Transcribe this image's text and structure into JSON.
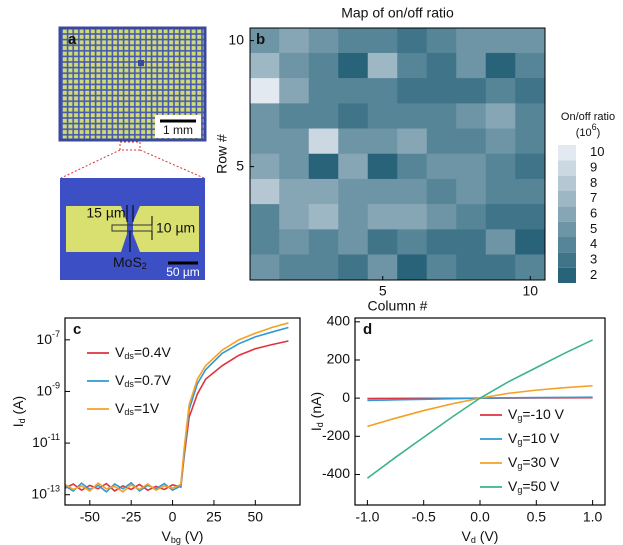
{
  "panel_a": {
    "label": "a",
    "top_scale_bar": "1 mm",
    "gap_label": "15 µm",
    "width_label": "10 µm",
    "material_label": "MoS2",
    "bottom_scale_bar": "50 µm"
  },
  "chart_data": [
    {
      "type": "heatmap",
      "label": "b",
      "title": "Map of on/off ratio",
      "x_label": "Column #",
      "y_label": "Row #",
      "x": [
        1,
        2,
        3,
        4,
        5,
        6,
        7,
        8,
        9,
        10
      ],
      "y": [
        10,
        9,
        8,
        7,
        6,
        5,
        4,
        3,
        2,
        1
      ],
      "values": [
        [
          5,
          6,
          5,
          4,
          4,
          3,
          4,
          5,
          5,
          5
        ],
        [
          7,
          5,
          4,
          2,
          7,
          4,
          3,
          5,
          2,
          4
        ],
        [
          10,
          6,
          4,
          4,
          4,
          3,
          3,
          3,
          4,
          3
        ],
        [
          5,
          4,
          4,
          3,
          4,
          4,
          4,
          5,
          6,
          4
        ],
        [
          5,
          5,
          9,
          5,
          5,
          6,
          4,
          4,
          5,
          4
        ],
        [
          6,
          5,
          2,
          6,
          2,
          4,
          5,
          5,
          4,
          3
        ],
        [
          8,
          6,
          6,
          5,
          5,
          5,
          4,
          5,
          4,
          4
        ],
        [
          4,
          6,
          7,
          5,
          6,
          6,
          5,
          4,
          3,
          3
        ],
        [
          4,
          5,
          4,
          5,
          3,
          4,
          3,
          3,
          5,
          2
        ],
        [
          5,
          4,
          4,
          3,
          5,
          2,
          4,
          3,
          3,
          4
        ]
      ],
      "xlim": [
        0.5,
        10.5
      ],
      "xticks": [
        5,
        10
      ],
      "ylim": [
        0.5,
        10.5
      ],
      "yticks": [
        5,
        10
      ],
      "colorbar": {
        "title": "On/off ratio",
        "unit": "(106)",
        "lim": [
          1.5,
          10.5
        ],
        "ticks": [
          2,
          3,
          4,
          5,
          6,
          7,
          8,
          9,
          10
        ],
        "colors": [
          "#1d5b73",
          "#eef1f7"
        ]
      }
    },
    {
      "type": "line",
      "label": "c",
      "x_label": "Vbg (V)",
      "y_label": "Id (A)",
      "log_y": true,
      "legend": "upper left",
      "x": [
        -65,
        -60,
        -55,
        -50,
        -45,
        -40,
        -35,
        -30,
        -25,
        -20,
        -15,
        -10,
        -5,
        0,
        5,
        7,
        10,
        15,
        20,
        30,
        40,
        50,
        60,
        70
      ],
      "series": [
        {
          "name": "Vds=0.4V",
          "color": "#e0333d",
          "values": [
            1.8e-13,
            2.6e-13,
            1.5e-13,
            2.3e-13,
            1.7e-13,
            2.7e-13,
            1.4e-13,
            2.2e-13,
            1.6e-13,
            2.5e-13,
            1.5e-13,
            2.1e-13,
            1.6e-13,
            2.4e-13,
            2e-13,
            3e-12,
            1e-10,
            8e-10,
            3e-09,
            1e-08,
            2.5e-08,
            4.5e-08,
            6.5e-08,
            9e-08
          ]
        },
        {
          "name": "Vds=0.7V",
          "color": "#2f9ad6",
          "values": [
            2.2e-13,
            1.4e-13,
            2.8e-13,
            1.6e-13,
            2.3e-13,
            1.3e-13,
            2.6e-13,
            1.7e-13,
            2.9e-13,
            1.4e-13,
            2.3e-13,
            1.7e-13,
            2.7e-13,
            1.5e-13,
            2.2e-13,
            4e-12,
            2e-10,
            2e-09,
            7e-09,
            3e-08,
            7e-08,
            1.3e-07,
            2e-07,
            3e-07
          ]
        },
        {
          "name": "Vds=1V",
          "color": "#f5a023",
          "values": [
            2.5e-13,
            1.6e-13,
            2.2e-13,
            1.4e-13,
            2.8e-13,
            1.7e-13,
            2.1e-13,
            1.3e-13,
            2.4e-13,
            1.6e-13,
            2.6e-13,
            1.5e-13,
            2.2e-13,
            1.8e-13,
            2.5e-13,
            6e-12,
            3e-10,
            3e-09,
            1e-08,
            4e-08,
            1e-07,
            1.8e-07,
            3e-07,
            4.5e-07
          ]
        }
      ],
      "xlim": [
        -65,
        77
      ],
      "xticks": [
        -50,
        -25,
        0,
        25,
        50
      ],
      "ylim": [
        4e-14,
        7e-07
      ],
      "yticks": [
        {
          "value": 1e-13,
          "label": "10-13"
        },
        {
          "value": 1e-11,
          "label": "10-11"
        },
        {
          "value": 1e-09,
          "label": "10-9"
        },
        {
          "value": 1e-07,
          "label": "10-7"
        }
      ]
    },
    {
      "type": "line",
      "label": "d",
      "x_label": "Vd (V)",
      "y_label": "Id (nA)",
      "log_y": false,
      "legend": "lower right",
      "x": [
        -1,
        -0.75,
        -0.5,
        -0.25,
        0,
        0.25,
        0.5,
        0.75,
        1
      ],
      "series": [
        {
          "name": "Vg=-10 V",
          "color": "#e0333d",
          "values": [
            -2,
            -1.5,
            -1,
            -0.5,
            0,
            0.5,
            1,
            1.5,
            2
          ]
        },
        {
          "name": "Vg=10 V",
          "color": "#2f9ad6",
          "values": [
            -12,
            -9,
            -6,
            -3,
            0,
            2,
            3,
            4,
            5
          ]
        },
        {
          "name": "Vg=30 V",
          "color": "#f5a023",
          "values": [
            -148,
            -105,
            -65,
            -30,
            0,
            25,
            42,
            55,
            65
          ]
        },
        {
          "name": "Vg=50 V",
          "color": "#3cb48a",
          "values": [
            -420,
            -310,
            -205,
            -100,
            0,
            85,
            160,
            235,
            305
          ]
        }
      ],
      "xlim": [
        -1.11,
        1.11
      ],
      "xticks": [
        {
          "value": -1,
          "label": "-1.0"
        },
        {
          "value": -0.5,
          "label": "-0.5"
        },
        {
          "value": 0,
          "label": "0.0"
        },
        {
          "value": 0.5,
          "label": "0.5"
        },
        {
          "value": 1,
          "label": "1.0"
        }
      ],
      "ylim": [
        -560,
        420
      ],
      "yticks": [
        -400,
        -200,
        0,
        200,
        400
      ]
    }
  ]
}
